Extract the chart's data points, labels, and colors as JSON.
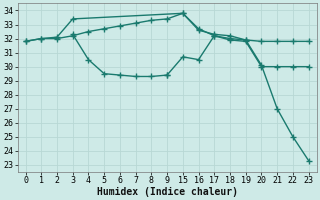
{
  "background_color": "#ceeae7",
  "grid_color": "#b8d8d4",
  "line_color": "#1a7a6e",
  "line_width": 1.0,
  "marker": "+",
  "marker_size": 4.0,
  "xlabel": "Humidex (Indice chaleur)",
  "xlabel_fontsize": 7,
  "tick_fontsize": 6,
  "ylim": [
    22.5,
    34.5
  ],
  "yticks": [
    23,
    24,
    25,
    26,
    27,
    28,
    29,
    30,
    31,
    32,
    33,
    34
  ],
  "xlim": [
    -0.5,
    18.5
  ],
  "xpositions": [
    0,
    1,
    2,
    3,
    4,
    5,
    6,
    7,
    8,
    9,
    10,
    11,
    12,
    13,
    14,
    15,
    16,
    17,
    18
  ],
  "xlabels": [
    "0",
    "1",
    "2",
    "3",
    "4",
    "5",
    "6",
    "7",
    "8",
    "9",
    "15",
    "16",
    "17",
    "18",
    "19",
    "20",
    "21",
    "22",
    "23"
  ],
  "lines": [
    {
      "x": [
        0,
        1,
        2,
        3,
        10,
        11,
        12,
        13,
        14,
        15,
        16,
        17,
        18
      ],
      "y": [
        31.8,
        32.0,
        32.1,
        33.4,
        33.8,
        32.6,
        32.3,
        32.2,
        31.9,
        30.1,
        27.0,
        25.0,
        23.3
      ]
    },
    {
      "x": [
        0,
        1,
        2,
        3,
        4,
        5,
        6,
        7,
        8,
        9,
        10,
        11,
        12,
        13,
        14,
        15,
        16,
        17,
        18
      ],
      "y": [
        31.8,
        32.0,
        32.0,
        32.2,
        32.5,
        32.7,
        32.9,
        33.1,
        33.3,
        33.4,
        33.8,
        32.7,
        32.2,
        32.0,
        31.9,
        31.8,
        31.8,
        31.8,
        31.8
      ]
    },
    {
      "x": [
        3,
        4,
        5,
        6,
        7,
        8,
        9
      ],
      "y": [
        32.3,
        30.5,
        29.5,
        29.4,
        29.3,
        29.3,
        29.4
      ]
    },
    {
      "x": [
        9,
        10,
        11,
        12,
        13,
        14,
        15,
        16,
        17,
        18
      ],
      "y": [
        29.4,
        30.7,
        30.5,
        32.2,
        31.9,
        31.8,
        30.0,
        30.0,
        30.0,
        30.0
      ]
    }
  ]
}
